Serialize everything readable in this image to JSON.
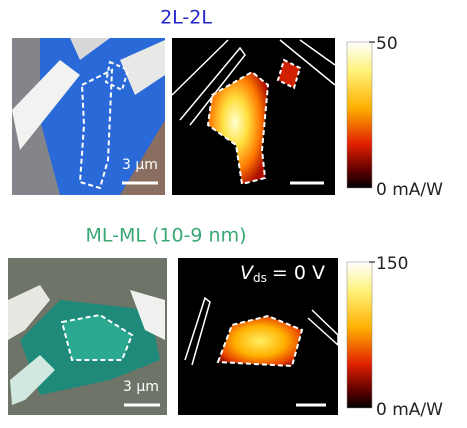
{
  "panels": [
    {
      "title": "2L-2L",
      "scale_bar": "3 μm",
      "colorbar": {
        "max": 50,
        "min": "0 mA/W"
      }
    },
    {
      "title": "ML-ML (10-9 nm)",
      "scale_bar": "3 μm",
      "colorbar": {
        "max": 150,
        "min": "0 mA/W"
      },
      "annotation": {
        "symbol": "V",
        "subscript": "ds",
        "rest": "= 0 V"
      }
    }
  ]
}
